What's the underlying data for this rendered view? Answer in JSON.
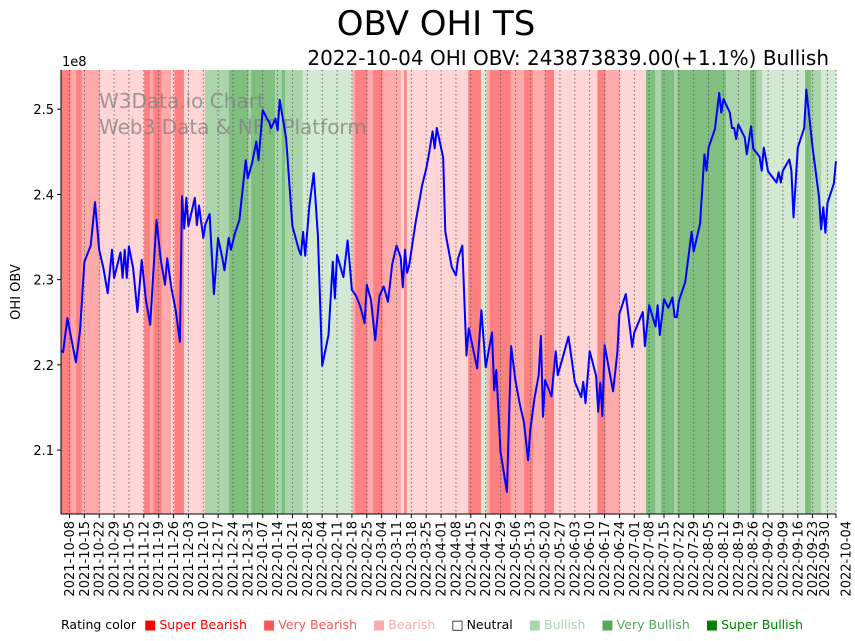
{
  "chart_data": {
    "type": "line",
    "title": "OBV OHI TS",
    "subtitle": "2022-10-04 OHI OBV: 243873839.00(+1.1%) Bullish",
    "ylabel": "OHI OBV",
    "y_multiplier_label": "1e8",
    "ylim": [
      2.025,
      2.546
    ],
    "yticks": [
      "2.1",
      "2.2",
      "2.3",
      "2.4",
      "2.5"
    ],
    "x_origin": "2021-10-04",
    "x_end": "2022-10-04",
    "xticks": [
      "2021-10-08",
      "2021-10-15",
      "2021-10-22",
      "2021-10-29",
      "2021-11-05",
      "2021-11-12",
      "2021-11-19",
      "2021-11-26",
      "2021-12-03",
      "2021-12-10",
      "2021-12-17",
      "2021-12-24",
      "2021-12-31",
      "2022-01-07",
      "2022-01-14",
      "2022-01-21",
      "2022-01-28",
      "2022-02-04",
      "2022-02-11",
      "2022-02-18",
      "2022-02-25",
      "2022-03-04",
      "2022-03-11",
      "2022-03-18",
      "2022-03-25",
      "2022-04-01",
      "2022-04-08",
      "2022-04-15",
      "2022-04-22",
      "2022-04-29",
      "2022-05-06",
      "2022-05-13",
      "2022-05-20",
      "2022-05-27",
      "2022-06-03",
      "2022-06-10",
      "2022-06-17",
      "2022-06-24",
      "2022-07-01",
      "2022-07-08",
      "2022-07-15",
      "2022-07-22",
      "2022-07-29",
      "2022-08-05",
      "2022-08-12",
      "2022-08-19",
      "2022-08-26",
      "2022-09-02",
      "2022-09-09",
      "2022-09-16",
      "2022-09-23",
      "2022-09-30",
      "2022-10-04"
    ],
    "series": [
      {
        "name": "OHI OBV",
        "color": "#0000ff",
        "points_day_value": [
          [
            0,
            2.217
          ],
          [
            1,
            2.215
          ],
          [
            3,
            2.255
          ],
          [
            5,
            2.229
          ],
          [
            7,
            2.203
          ],
          [
            9,
            2.241
          ],
          [
            11,
            2.321
          ],
          [
            14,
            2.34
          ],
          [
            16,
            2.391
          ],
          [
            18,
            2.335
          ],
          [
            20,
            2.313
          ],
          [
            22,
            2.284
          ],
          [
            24,
            2.335
          ],
          [
            25,
            2.302
          ],
          [
            28,
            2.332
          ],
          [
            29,
            2.302
          ],
          [
            30,
            2.335
          ],
          [
            31,
            2.302
          ],
          [
            32,
            2.339
          ],
          [
            34,
            2.313
          ],
          [
            36,
            2.262
          ],
          [
            38,
            2.323
          ],
          [
            40,
            2.276
          ],
          [
            42,
            2.247
          ],
          [
            45,
            2.37
          ],
          [
            47,
            2.323
          ],
          [
            49,
            2.294
          ],
          [
            50,
            2.325
          ],
          [
            52,
            2.29
          ],
          [
            54,
            2.264
          ],
          [
            56,
            2.227
          ],
          [
            57,
            2.398
          ],
          [
            58,
            2.36
          ],
          [
            59,
            2.396
          ],
          [
            60,
            2.363
          ],
          [
            63,
            2.396
          ],
          [
            64,
            2.364
          ],
          [
            65,
            2.387
          ],
          [
            67,
            2.349
          ],
          [
            68,
            2.365
          ],
          [
            70,
            2.377
          ],
          [
            72,
            2.283
          ],
          [
            74,
            2.349
          ],
          [
            76,
            2.325
          ],
          [
            77,
            2.311
          ],
          [
            79,
            2.349
          ],
          [
            80,
            2.335
          ],
          [
            82,
            2.355
          ],
          [
            84,
            2.37
          ],
          [
            87,
            2.44
          ],
          [
            88,
            2.419
          ],
          [
            90,
            2.437
          ],
          [
            92,
            2.462
          ],
          [
            93,
            2.44
          ],
          [
            95,
            2.499
          ],
          [
            97,
            2.489
          ],
          [
            98,
            2.485
          ],
          [
            99,
            2.478
          ],
          [
            101,
            2.489
          ],
          [
            102,
            2.475
          ],
          [
            103,
            2.511
          ],
          [
            106,
            2.466
          ],
          [
            109,
            2.363
          ],
          [
            112,
            2.335
          ],
          [
            113,
            2.329
          ],
          [
            114,
            2.356
          ],
          [
            115,
            2.328
          ],
          [
            117,
            2.387
          ],
          [
            119,
            2.425
          ],
          [
            121,
            2.352
          ],
          [
            123,
            2.199
          ],
          [
            126,
            2.235
          ],
          [
            128,
            2.321
          ],
          [
            129,
            2.278
          ],
          [
            130,
            2.329
          ],
          [
            133,
            2.303
          ],
          [
            135,
            2.346
          ],
          [
            137,
            2.288
          ],
          [
            139,
            2.281
          ],
          [
            141,
            2.268
          ],
          [
            143,
            2.249
          ],
          [
            144,
            2.294
          ],
          [
            146,
            2.276
          ],
          [
            148,
            2.229
          ],
          [
            150,
            2.281
          ],
          [
            152,
            2.292
          ],
          [
            154,
            2.274
          ],
          [
            156,
            2.318
          ],
          [
            158,
            2.34
          ],
          [
            160,
            2.326
          ],
          [
            161,
            2.291
          ],
          [
            162,
            2.335
          ],
          [
            163,
            2.308
          ],
          [
            164,
            2.317
          ],
          [
            167,
            2.367
          ],
          [
            170,
            2.41
          ],
          [
            172,
            2.43
          ],
          [
            173,
            2.443
          ],
          [
            175,
            2.474
          ],
          [
            176,
            2.454
          ],
          [
            177,
            2.478
          ],
          [
            180,
            2.443
          ],
          [
            181,
            2.356
          ],
          [
            184,
            2.315
          ],
          [
            186,
            2.305
          ],
          [
            187,
            2.325
          ],
          [
            189,
            2.34
          ],
          [
            191,
            2.211
          ],
          [
            192,
            2.243
          ],
          [
            196,
            2.196
          ],
          [
            198,
            2.264
          ],
          [
            200,
            2.197
          ],
          [
            203,
            2.238
          ],
          [
            204,
            2.17
          ],
          [
            205,
            2.194
          ],
          [
            206,
            2.147
          ],
          [
            207,
            2.098
          ],
          [
            210,
            2.051
          ],
          [
            211,
            2.135
          ],
          [
            212,
            2.222
          ],
          [
            214,
            2.182
          ],
          [
            216,
            2.155
          ],
          [
            218,
            2.133
          ],
          [
            220,
            2.088
          ],
          [
            221,
            2.123
          ],
          [
            223,
            2.161
          ],
          [
            225,
            2.188
          ],
          [
            226,
            2.234
          ],
          [
            227,
            2.139
          ],
          [
            228,
            2.182
          ],
          [
            231,
            2.163
          ],
          [
            233,
            2.216
          ],
          [
            234,
            2.188
          ],
          [
            239,
            2.233
          ],
          [
            242,
            2.18
          ],
          [
            245,
            2.162
          ],
          [
            246,
            2.18
          ],
          [
            247,
            2.155
          ],
          [
            249,
            2.216
          ],
          [
            252,
            2.187
          ],
          [
            253,
            2.145
          ],
          [
            254,
            2.179
          ],
          [
            255,
            2.14
          ],
          [
            256,
            2.223
          ],
          [
            260,
            2.169
          ],
          [
            262,
            2.214
          ],
          [
            263,
            2.26
          ],
          [
            266,
            2.283
          ],
          [
            269,
            2.221
          ],
          [
            270,
            2.238
          ],
          [
            274,
            2.262
          ],
          [
            275,
            2.222
          ],
          [
            277,
            2.27
          ],
          [
            280,
            2.245
          ],
          [
            281,
            2.27
          ],
          [
            282,
            2.235
          ],
          [
            284,
            2.277
          ],
          [
            286,
            2.267
          ],
          [
            288,
            2.279
          ],
          [
            289,
            2.256
          ],
          [
            290,
            2.256
          ],
          [
            291,
            2.275
          ],
          [
            294,
            2.297
          ],
          [
            297,
            2.356
          ],
          [
            298,
            2.333
          ],
          [
            301,
            2.366
          ],
          [
            303,
            2.447
          ],
          [
            304,
            2.428
          ],
          [
            305,
            2.455
          ],
          [
            308,
            2.477
          ],
          [
            310,
            2.519
          ],
          [
            311,
            2.496
          ],
          [
            312,
            2.512
          ],
          [
            315,
            2.496
          ],
          [
            316,
            2.478
          ],
          [
            317,
            2.478
          ],
          [
            318,
            2.465
          ],
          [
            319,
            2.482
          ],
          [
            322,
            2.467
          ],
          [
            323,
            2.447
          ],
          [
            325,
            2.48
          ],
          [
            326,
            2.454
          ],
          [
            329,
            2.444
          ],
          [
            330,
            2.428
          ],
          [
            331,
            2.455
          ],
          [
            333,
            2.427
          ],
          [
            337,
            2.414
          ],
          [
            338,
            2.426
          ],
          [
            339,
            2.414
          ],
          [
            340,
            2.428
          ],
          [
            343,
            2.441
          ],
          [
            344,
            2.428
          ],
          [
            345,
            2.373
          ],
          [
            347,
            2.455
          ],
          [
            350,
            2.478
          ],
          [
            351,
            2.523
          ],
          [
            352,
            2.501
          ],
          [
            354,
            2.455
          ],
          [
            357,
            2.397
          ],
          [
            358,
            2.359
          ],
          [
            359,
            2.385
          ],
          [
            360,
            2.355
          ],
          [
            361,
            2.39
          ],
          [
            364,
            2.413
          ],
          [
            365,
            2.439
          ]
        ]
      }
    ],
    "rating_bands": [
      [
        0,
        4.6,
        "SB"
      ],
      [
        4.6,
        7.1,
        "VB"
      ],
      [
        7.1,
        9.7,
        "SB"
      ],
      [
        9.7,
        18.4,
        "VB"
      ],
      [
        18.4,
        39.2,
        "B"
      ],
      [
        39.2,
        41.9,
        "SB"
      ],
      [
        41.9,
        43.5,
        "VB"
      ],
      [
        43.5,
        47.4,
        "SB"
      ],
      [
        47.4,
        51.8,
        "VB"
      ],
      [
        51.8,
        53.4,
        "B"
      ],
      [
        53.4,
        57.9,
        "SB"
      ],
      [
        57.9,
        67.8,
        "B"
      ],
      [
        67.8,
        79.1,
        "VBU"
      ],
      [
        79.1,
        88.2,
        "SBU"
      ],
      [
        88.2,
        89.5,
        "VBU"
      ],
      [
        89.5,
        100.8,
        "SBU"
      ],
      [
        100.8,
        104,
        "VBU"
      ],
      [
        104,
        105.5,
        "SBU"
      ],
      [
        105.5,
        113.8,
        "VBU"
      ],
      [
        113.8,
        137.3,
        "BU"
      ],
      [
        137.3,
        138.5,
        "VB"
      ],
      [
        138.5,
        144.3,
        "SB"
      ],
      [
        144.3,
        147,
        "VB"
      ],
      [
        147,
        151.5,
        "SB"
      ],
      [
        151.5,
        160.1,
        "VB"
      ],
      [
        160.1,
        161.6,
        "B"
      ],
      [
        161.6,
        162.8,
        "SB"
      ],
      [
        162.8,
        191.8,
        "B"
      ],
      [
        191.8,
        197.8,
        "SB"
      ],
      [
        197.8,
        200.5,
        "BU"
      ],
      [
        200.5,
        202,
        "VB"
      ],
      [
        202,
        211.8,
        "SB"
      ],
      [
        211.8,
        218.1,
        "VB"
      ],
      [
        218.1,
        222.2,
        "SB"
      ],
      [
        222.2,
        228.1,
        "VB"
      ],
      [
        228.1,
        232.2,
        "SB"
      ],
      [
        232.2,
        252.6,
        "B"
      ],
      [
        252.6,
        256.5,
        "SB"
      ],
      [
        256.5,
        263.3,
        "VB"
      ],
      [
        263.3,
        275.5,
        "B"
      ],
      [
        275.5,
        279.8,
        "SBU"
      ],
      [
        279.8,
        282.6,
        "VBU"
      ],
      [
        282.6,
        288.8,
        "SBU"
      ],
      [
        288.8,
        290.3,
        "VBU"
      ],
      [
        290.3,
        313.2,
        "SBU"
      ],
      [
        313.2,
        324.5,
        "VBU"
      ],
      [
        324.5,
        327.4,
        "SBU"
      ],
      [
        327.4,
        330.2,
        "VBU"
      ],
      [
        330.2,
        350.4,
        "BU"
      ],
      [
        350.4,
        353.3,
        "SBU"
      ],
      [
        353.3,
        358,
        "VBU"
      ],
      [
        358,
        365,
        "BU"
      ]
    ],
    "band_colors": {
      "SB": "#ff8080",
      "VB": "#ffaaaa",
      "B": "#ffd5d5",
      "BU": "#d4e9d4",
      "VBU": "#aad4aa",
      "SBU": "#80bf80"
    },
    "legend": {
      "label": "Rating color",
      "items": [
        {
          "name": "Super Bearish",
          "color": "#ff0000",
          "symbol": "■"
        },
        {
          "name": "Very Bearish",
          "color": "#ff5555",
          "symbol": "■"
        },
        {
          "name": "Bearish",
          "color": "#ffaaaa",
          "symbol": "■"
        },
        {
          "name": "Neutral",
          "color": "#000000",
          "symbol": "□"
        },
        {
          "name": "Bullish",
          "color": "#aad4aa",
          "symbol": "■"
        },
        {
          "name": "Very Bullish",
          "color": "#55aa55",
          "symbol": "■"
        },
        {
          "name": "Super Bullish",
          "color": "#008000",
          "symbol": "■"
        }
      ]
    },
    "watermark": [
      "W3Data.io Chart",
      "Web3 Data & NFT Platform"
    ]
  }
}
